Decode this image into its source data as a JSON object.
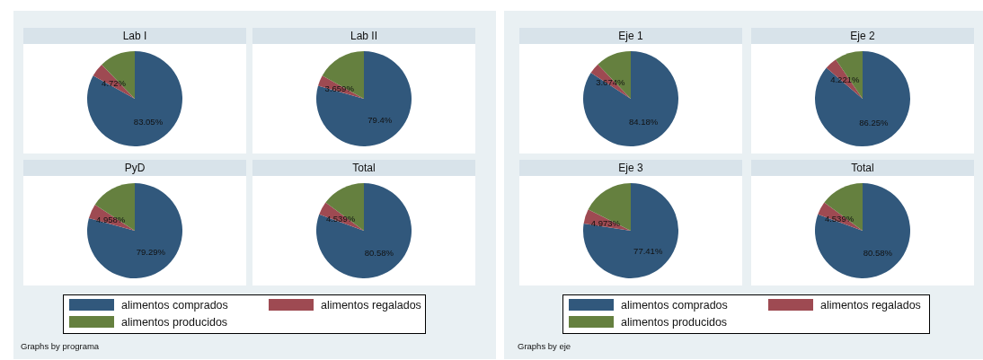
{
  "chart_data": [
    {
      "type": "pie",
      "categories": [
        "alimentos comprados",
        "alimentos regalados",
        "alimentos producidos"
      ],
      "colors": [
        "#31587c",
        "#9e4a52",
        "#65803f"
      ],
      "legend": "bottom",
      "annotations": [
        "Graphs by programa"
      ],
      "series": [
        {
          "name": "Lab I",
          "values": [
            83.05,
            4.72,
            12.23
          ],
          "value_labels": [
            "83.05%",
            "4.72%",
            null
          ]
        },
        {
          "name": "Lab II",
          "values": [
            79.4,
            3.659,
            16.941
          ],
          "value_labels": [
            "79.4%",
            "3.659%",
            null
          ]
        },
        {
          "name": "PyD",
          "values": [
            79.29,
            4.958,
            15.752
          ],
          "value_labels": [
            "79.29%",
            "4.958%",
            null
          ]
        },
        {
          "name": "Total",
          "values": [
            80.58,
            4.539,
            14.881
          ],
          "value_labels": [
            "80.58%",
            "4.539%",
            null
          ]
        }
      ]
    },
    {
      "type": "pie",
      "categories": [
        "alimentos comprados",
        "alimentos regalados",
        "alimentos producidos"
      ],
      "colors": [
        "#31587c",
        "#9e4a52",
        "#65803f"
      ],
      "legend": "bottom",
      "annotations": [
        "Graphs by eje"
      ],
      "series": [
        {
          "name": "Eje 1",
          "values": [
            84.18,
            3.674,
            12.146
          ],
          "value_labels": [
            "84.18%",
            "3.674%",
            null
          ]
        },
        {
          "name": "Eje 2",
          "values": [
            86.25,
            4.221,
            9.529
          ],
          "value_labels": [
            "86.25%",
            "4.221%",
            null
          ]
        },
        {
          "name": "Eje 3",
          "values": [
            77.41,
            4.973,
            17.617
          ],
          "value_labels": [
            "77.41%",
            "4.973%",
            null
          ]
        },
        {
          "name": "Total",
          "values": [
            80.58,
            4.539,
            14.881
          ],
          "value_labels": [
            "80.58%",
            "4.539%",
            null
          ]
        }
      ]
    }
  ]
}
